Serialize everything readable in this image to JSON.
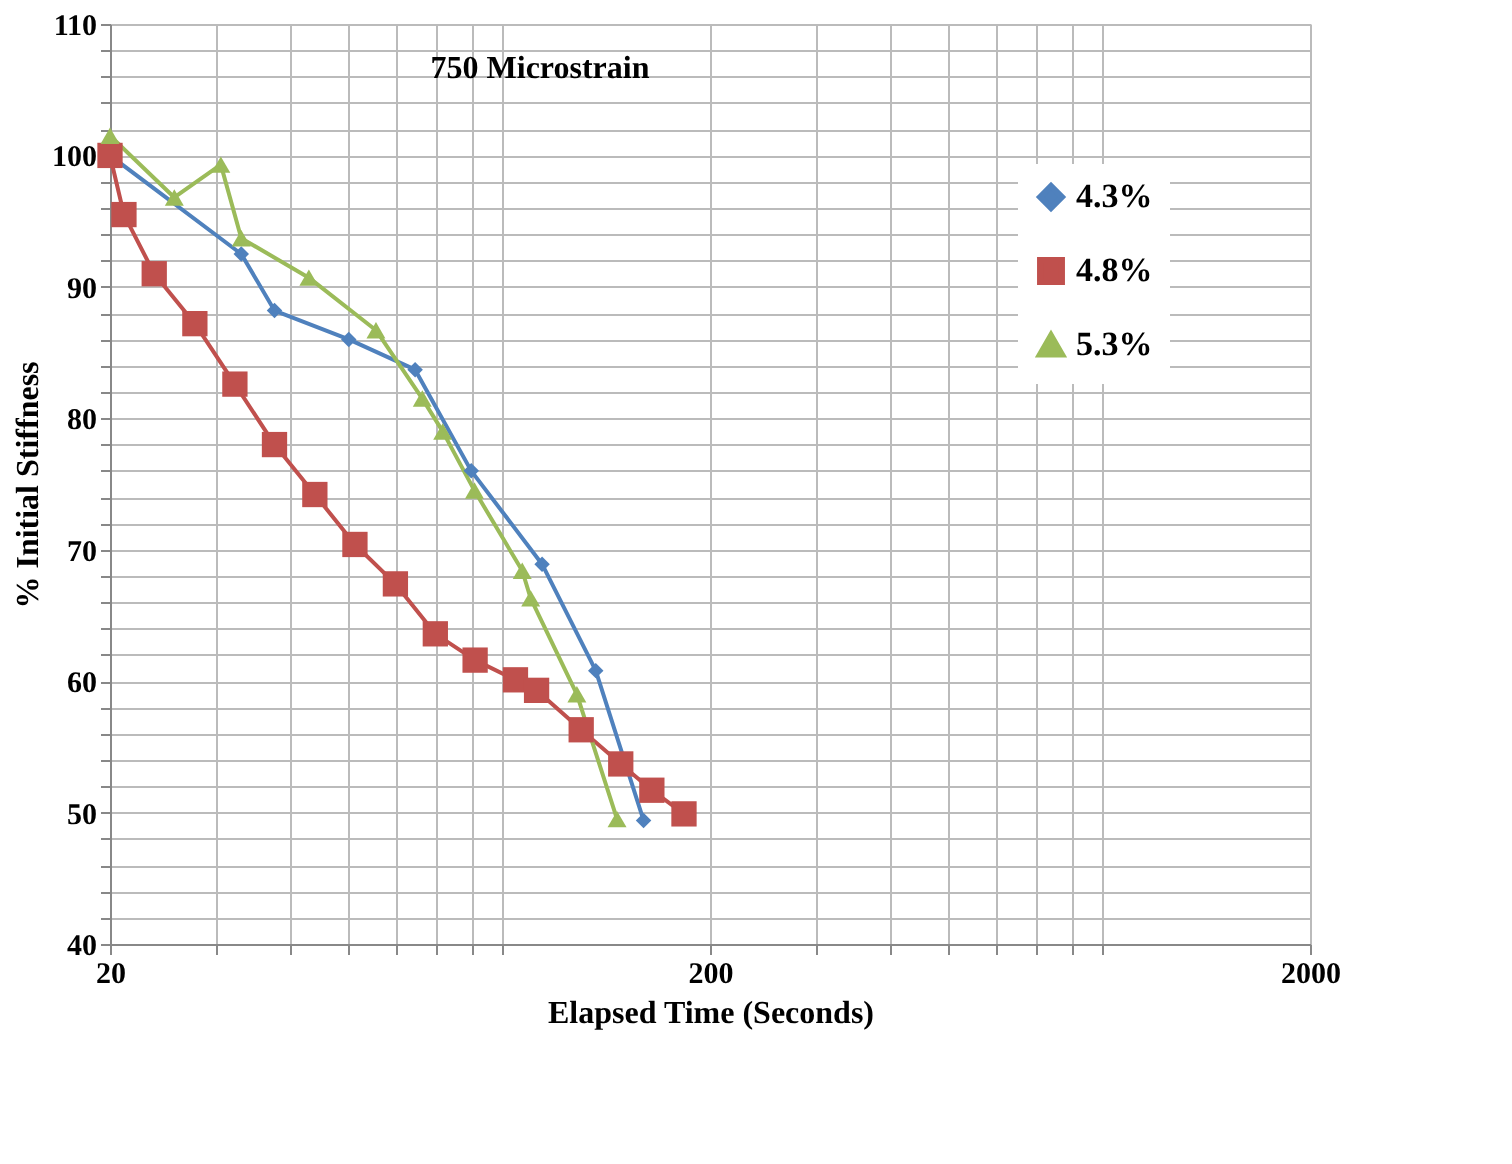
{
  "chart_data": {
    "type": "line",
    "xlabel": "Elapsed Time  (Seconds)",
    "ylabel": "% Initial Stiffness",
    "annotations": [
      "750 Microstrain"
    ],
    "log": "x",
    "grid": true,
    "legend": "top right",
    "xlim": [
      20,
      2000
    ],
    "ylim": [
      40,
      110
    ],
    "xticks": [
      20,
      {
        "value": 30,
        "label": null
      },
      {
        "value": 40,
        "label": null
      },
      {
        "value": 50,
        "label": null
      },
      {
        "value": 60,
        "label": null
      },
      {
        "value": 70,
        "label": null
      },
      {
        "value": 80,
        "label": null
      },
      {
        "value": 90,
        "label": null
      },
      200,
      {
        "value": 300,
        "label": null
      },
      {
        "value": 400,
        "label": null
      },
      {
        "value": 500,
        "label": null
      },
      {
        "value": 600,
        "label": null
      },
      {
        "value": 700,
        "label": null
      },
      {
        "value": 800,
        "label": null
      },
      {
        "value": 900,
        "label": null
      },
      2000
    ],
    "yticks": [
      40,
      {
        "value": 42,
        "label": null
      },
      {
        "value": 44,
        "label": null
      },
      {
        "value": 46,
        "label": null
      },
      {
        "value": 48,
        "label": null
      },
      50,
      {
        "value": 52,
        "label": null
      },
      {
        "value": 54,
        "label": null
      },
      {
        "value": 56,
        "label": null
      },
      {
        "value": 58,
        "label": null
      },
      60,
      {
        "value": 62,
        "label": null
      },
      {
        "value": 64,
        "label": null
      },
      {
        "value": 66,
        "label": null
      },
      {
        "value": 68,
        "label": null
      },
      70,
      {
        "value": 72,
        "label": null
      },
      {
        "value": 74,
        "label": null
      },
      {
        "value": 76,
        "label": null
      },
      {
        "value": 78,
        "label": null
      },
      80,
      {
        "value": 82,
        "label": null
      },
      {
        "value": 84,
        "label": null
      },
      {
        "value": 86,
        "label": null
      },
      {
        "value": 88,
        "label": null
      },
      90,
      {
        "value": 92,
        "label": null
      },
      {
        "value": 94,
        "label": null
      },
      {
        "value": 96,
        "label": null
      },
      {
        "value": 98,
        "label": null
      },
      100,
      {
        "value": 102,
        "label": null
      },
      {
        "value": 104,
        "label": null
      },
      {
        "value": 106,
        "label": null
      },
      {
        "value": 108,
        "label": null
      },
      110
    ],
    "series": [
      {
        "name": "4.3%",
        "color": "#4f81bd",
        "marker": "diamond",
        "x": [
          20,
          25.6,
          33.1,
          37.6,
          50,
          64.5,
          80,
          105,
          129,
          155
        ],
        "values": [
          100,
          null,
          92.5,
          88.2,
          86,
          83.7,
          76,
          68.9,
          60.8,
          49.4
        ]
      },
      {
        "name": "4.8%",
        "color": "#c0504d",
        "marker": "square",
        "x": [
          20,
          21.1,
          23.7,
          27.7,
          32.3,
          37.6,
          43.9,
          51.2,
          59.8,
          69.7,
          81.2,
          94.8,
          102.8,
          122,
          142,
          160,
          181
        ],
        "values": [
          100,
          95.5,
          91,
          87.2,
          82.6,
          78,
          74.2,
          70.4,
          67.4,
          63.6,
          61.6,
          60.1,
          59.3,
          56.3,
          53.7,
          51.7,
          49.9
        ]
      },
      {
        "name": "5.3%",
        "color": "#9bbb59",
        "marker": "triangle",
        "x": [
          20,
          25.6,
          30.6,
          33.1,
          42.9,
          55.5,
          66.3,
          71.7,
          81,
          97.3,
          100.5,
          120,
          140
        ],
        "values": [
          101.5,
          96.8,
          99.3,
          93.7,
          90.7,
          86.7,
          81.5,
          79,
          74.5,
          68.4,
          66.3,
          59,
          49.5
        ]
      }
    ]
  }
}
